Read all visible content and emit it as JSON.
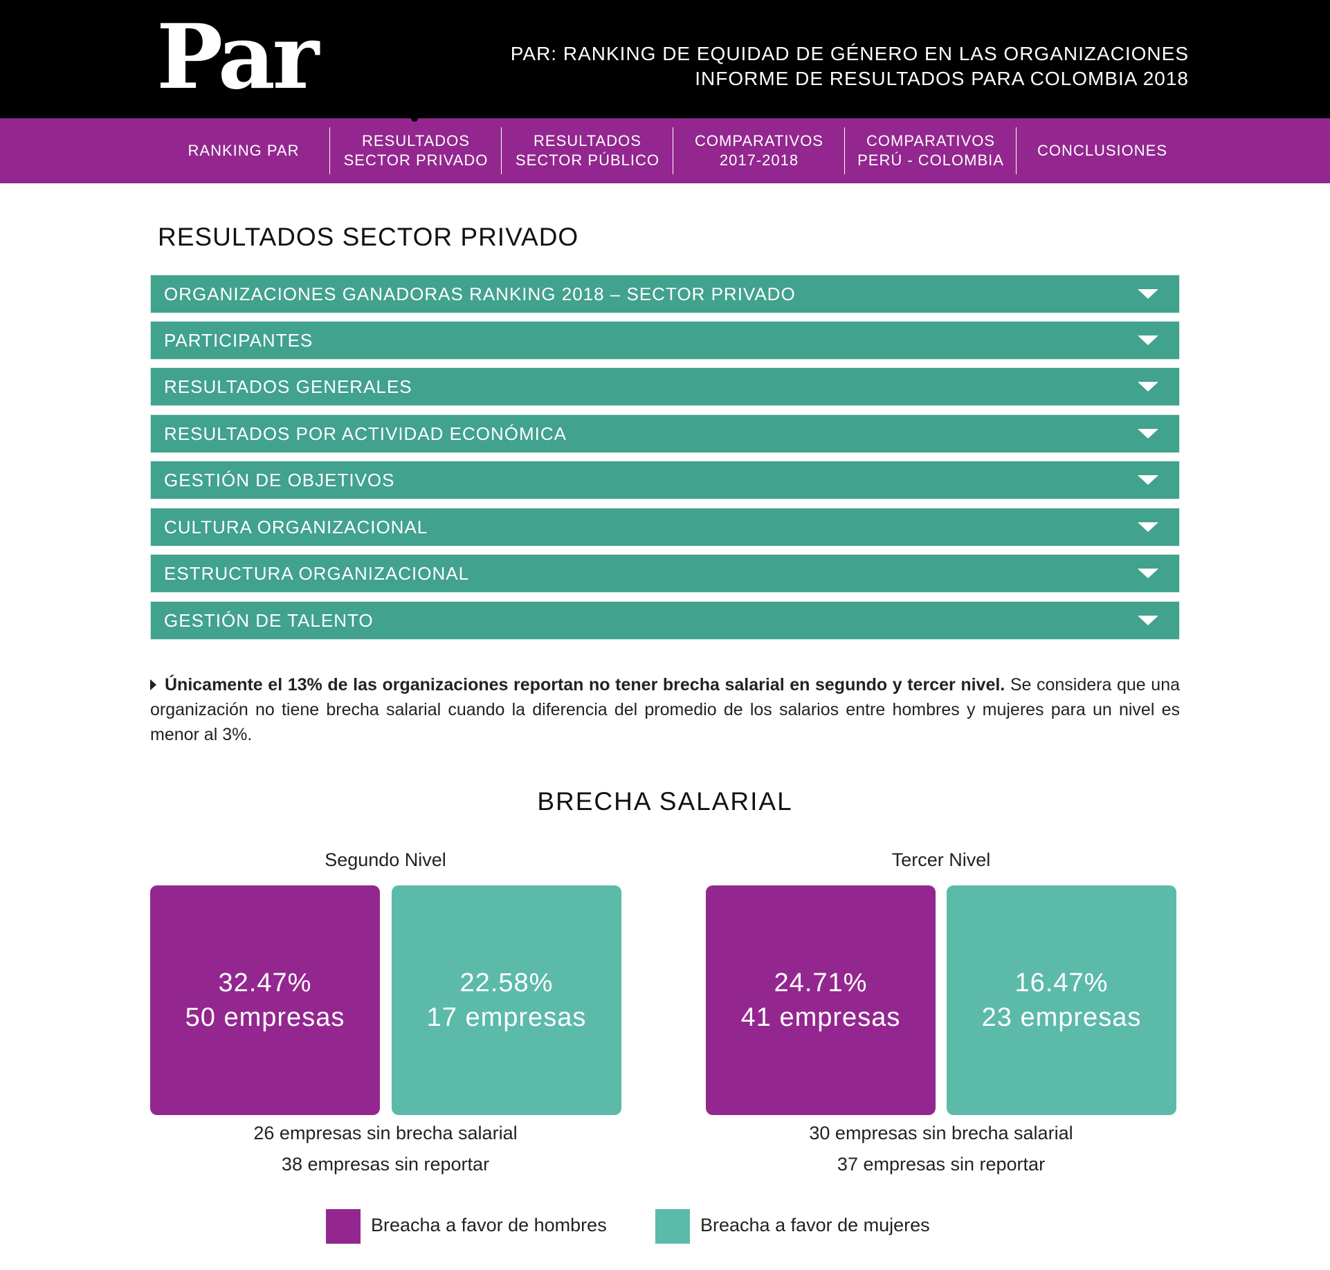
{
  "header": {
    "logo_text": "Par",
    "title_line1": "PAR: RANKING DE EQUIDAD DE GÉNERO EN LAS ORGANIZACIONES",
    "title_line2": "INFORME DE RESULTADOS PARA COLOMBIA 2018"
  },
  "nav": {
    "items": [
      {
        "label": "RANKING PAR"
      },
      {
        "label": "RESULTADOS\nSECTOR PRIVADO"
      },
      {
        "label": "RESULTADOS\nSECTOR PÚBLICO"
      },
      {
        "label": "COMPARATIVOS\n2017-2018"
      },
      {
        "label": "COMPARATIVOS\nPERÚ - COLOMBIA"
      },
      {
        "label": "CONCLUSIONES"
      }
    ]
  },
  "page_title": "RESULTADOS SECTOR PRIVADO",
  "accordion": [
    {
      "label": "ORGANIZACIONES GANADORAS RANKING 2018 – SECTOR PRIVADO"
    },
    {
      "label": "PARTICIPANTES"
    },
    {
      "label": "RESULTADOS GENERALES"
    },
    {
      "label": "RESULTADOS POR ACTIVIDAD ECONÓMICA"
    },
    {
      "label": "GESTIÓN DE OBJETIVOS"
    },
    {
      "label": "CULTURA ORGANIZACIONAL"
    },
    {
      "label": "ESTRUCTURA ORGANIZACIONAL"
    },
    {
      "label": "GESTIÓN DE TALENTO"
    }
  ],
  "note": {
    "bold": "Únicamente el 13% de las organizaciones reportan no tener brecha salarial en segundo y tercer nivel.",
    "text": " Se considera que una organización no tiene brecha salarial cuando la diferencia del promedio de los salarios entre hombres y mujeres para un nivel es menor al 3%."
  },
  "chart_data": {
    "type": "table",
    "title": "BRECHA SALARIAL",
    "series": [
      {
        "name": "Breacha a favor de hombres",
        "color": "#93278f"
      },
      {
        "name": "Breacha a favor de mujeres",
        "color": "#5cbaa9"
      }
    ],
    "levels": [
      {
        "name": "Segundo Nivel",
        "hombres": {
          "percent": "32.47%",
          "count": "50 empresas"
        },
        "mujeres": {
          "percent": "22.58%",
          "count": "17 empresas"
        },
        "sin_brecha": "26 empresas sin brecha salarial",
        "sin_reportar": "38 empresas sin reportar"
      },
      {
        "name": "Tercer Nivel",
        "hombres": {
          "percent": "24.71%",
          "count": "41 empresas"
        },
        "mujeres": {
          "percent": "16.47%",
          "count": "23 empresas"
        },
        "sin_brecha": "30 empresas sin brecha salarial",
        "sin_reportar": "37 empresas sin reportar"
      }
    ]
  },
  "colors": {
    "header_bg": "#000000",
    "nav_bg": "#93278f",
    "accordion_bg": "#41a28d",
    "hombres": "#93278f",
    "mujeres": "#5cbaa9"
  },
  "icons": {
    "accordion_toggle": "chevron-down-icon",
    "bullet": "triangle-right-icon"
  }
}
